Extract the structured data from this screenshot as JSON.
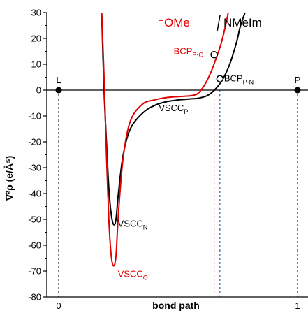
{
  "chart_data": {
    "type": "line",
    "xlabel": "bond path",
    "ylabel": "∇²ρ (e/Å⁵)",
    "xlim": [
      0,
      1
    ],
    "ylim": [
      -80,
      30
    ],
    "x_ticks": [
      "0",
      "1"
    ],
    "y_ticks": [
      30,
      20,
      10,
      0,
      -10,
      -20,
      -30,
      -40,
      -50,
      -60,
      -70,
      -80
    ],
    "grid": false,
    "legend_position": "top-right",
    "series": [
      {
        "name": "NMeIm",
        "color": "#000000",
        "x": [
          0.18,
          0.19,
          0.2,
          0.21,
          0.22,
          0.23,
          0.24,
          0.25,
          0.27,
          0.3,
          0.35,
          0.4,
          0.45,
          0.5,
          0.55,
          0.58,
          0.6,
          0.62,
          0.64,
          0.66,
          0.68,
          0.7,
          0.72,
          0.74,
          0.75,
          0.76,
          0.78
        ],
        "values": [
          30,
          0,
          -20,
          -38,
          -48,
          -52,
          -50,
          -40,
          -25,
          -15,
          -9,
          -6,
          -4.5,
          -3.8,
          -3.4,
          -3.2,
          -2.8,
          -2.2,
          -1.0,
          0.8,
          3.2,
          6.5,
          11,
          17,
          20.5,
          24.5,
          30
        ]
      },
      {
        "name": "⁻OMe",
        "color": "#e00000",
        "x": [
          0.18,
          0.19,
          0.2,
          0.21,
          0.22,
          0.23,
          0.24,
          0.25,
          0.27,
          0.3,
          0.35,
          0.4,
          0.45,
          0.5,
          0.55,
          0.58,
          0.6,
          0.62,
          0.64,
          0.66,
          0.68,
          0.7,
          0.71
        ],
        "values": [
          30,
          5,
          -25,
          -50,
          -64,
          -68,
          -64,
          -48,
          -26,
          -12,
          -5.5,
          -3.8,
          -2.9,
          -2.5,
          -2.2,
          -1.5,
          0.5,
          3.5,
          7.5,
          12.5,
          18,
          25.5,
          30
        ]
      }
    ],
    "points": [
      {
        "label": "L",
        "x": 0,
        "y": 0,
        "filled": true
      },
      {
        "label": "P",
        "x": 1,
        "y": 0,
        "filled": true
      }
    ],
    "annotations": [
      {
        "main": "BCP",
        "sub": "P-O",
        "color": "#e00000",
        "x": 0.651,
        "y": 13.7,
        "marker": "open-circle"
      },
      {
        "main": "BCP",
        "sub": "P-N",
        "color": "#000000",
        "x": 0.675,
        "y": 4.4,
        "marker": "open-circle"
      },
      {
        "main": "VSCC",
        "sub": "P",
        "color": "#000000",
        "x": 0.6,
        "y": -3
      },
      {
        "main": "VSCC",
        "sub": "N",
        "color": "#000000",
        "x": 0.23,
        "y": -52
      },
      {
        "main": "VSCC",
        "sub": "O",
        "color": "#e00000",
        "x": 0.23,
        "y": -68
      }
    ],
    "vertical_dashed_lines": [
      {
        "x": 0,
        "color": "#000000"
      },
      {
        "x": 0.651,
        "color": "#e00000"
      },
      {
        "x": 0.675,
        "color": "#1a3c99"
      },
      {
        "x": 1,
        "color": "#000000"
      }
    ]
  }
}
